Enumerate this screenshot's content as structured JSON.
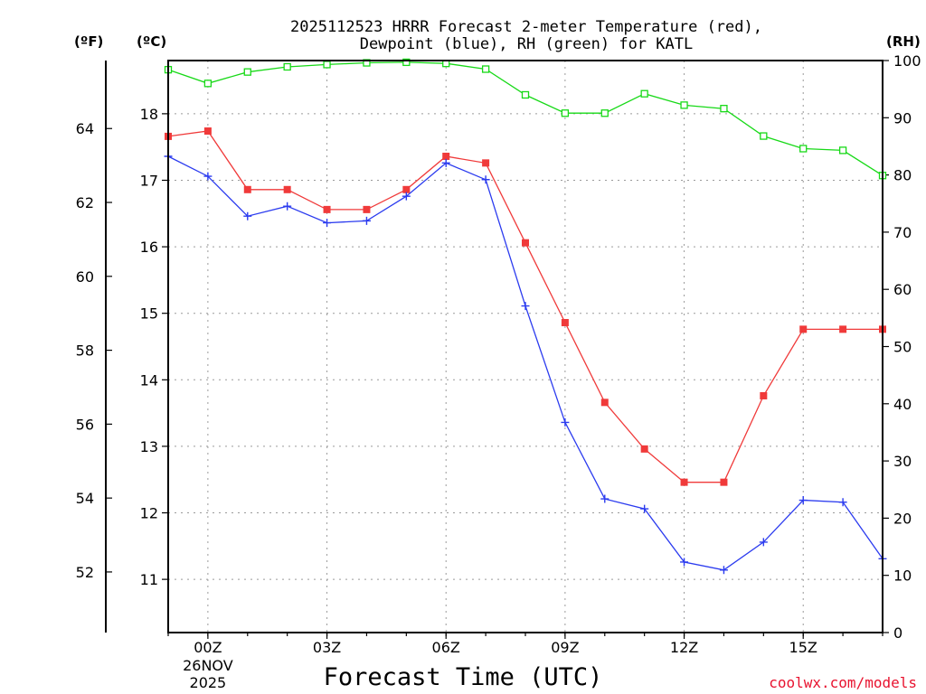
{
  "chart_data": {
    "type": "line",
    "title_line1": "2025112523 HRRR Forecast 2-meter Temperature (red),",
    "title_line2": "Dewpoint (blue), RH (green) for KATL",
    "xlabel": "Forecast Time (UTC)",
    "credit": "coolwx.com/models",
    "left_unit_f": "(ºF)",
    "left_unit_c": "(ºC)",
    "right_unit": "(RH)",
    "x_hours": [
      -1,
      0,
      1,
      2,
      3,
      4,
      5,
      6,
      7,
      8,
      9,
      10,
      11,
      12,
      13,
      14,
      15,
      16,
      17
    ],
    "x_ticks": [
      {
        "hour": 0,
        "label": "00Z",
        "date_line1": "26NOV",
        "date_line2": "2025"
      },
      {
        "hour": 3,
        "label": "03Z"
      },
      {
        "hour": 6,
        "label": "06Z"
      },
      {
        "hour": 9,
        "label": "09Z"
      },
      {
        "hour": 12,
        "label": "12Z"
      },
      {
        "hour": 15,
        "label": "15Z"
      }
    ],
    "xlim": [
      -1,
      17
    ],
    "celsius_axis": {
      "ylim": [
        10.2,
        18.8
      ],
      "ticks": [
        11,
        12,
        13,
        14,
        15,
        16,
        17,
        18
      ]
    },
    "fahrenheit_axis": {
      "ticks": [
        52,
        54,
        56,
        58,
        60,
        62,
        64
      ]
    },
    "rh_axis": {
      "ylim": [
        0,
        100
      ],
      "ticks": [
        0,
        10,
        20,
        30,
        40,
        50,
        60,
        70,
        80,
        90,
        100
      ]
    },
    "series": [
      {
        "name": "Temperature",
        "units": "C",
        "color": "#f03a3a",
        "marker": "filled-square",
        "values": [
          17.66,
          17.74,
          16.86,
          16.86,
          16.56,
          16.56,
          16.86,
          17.36,
          17.26,
          16.06,
          14.86,
          13.66,
          12.96,
          12.46,
          12.46,
          13.76,
          14.76,
          14.76,
          14.76
        ]
      },
      {
        "name": "Dewpoint",
        "units": "C",
        "color": "#2b3bef",
        "marker": "plus",
        "values": [
          17.36,
          17.06,
          16.46,
          16.61,
          16.36,
          16.39,
          16.76,
          17.26,
          17.01,
          15.11,
          13.36,
          12.21,
          12.06,
          11.26,
          11.14,
          11.56,
          12.19,
          12.16,
          11.31
        ]
      },
      {
        "name": "RH",
        "units": "%",
        "color": "#17d917",
        "marker": "open-square",
        "values": [
          98.4,
          96.0,
          98.0,
          98.9,
          99.3,
          99.6,
          99.7,
          99.5,
          98.5,
          94.0,
          90.8,
          90.8,
          94.2,
          92.2,
          91.6,
          86.8,
          84.6,
          84.3,
          79.9
        ]
      }
    ]
  }
}
